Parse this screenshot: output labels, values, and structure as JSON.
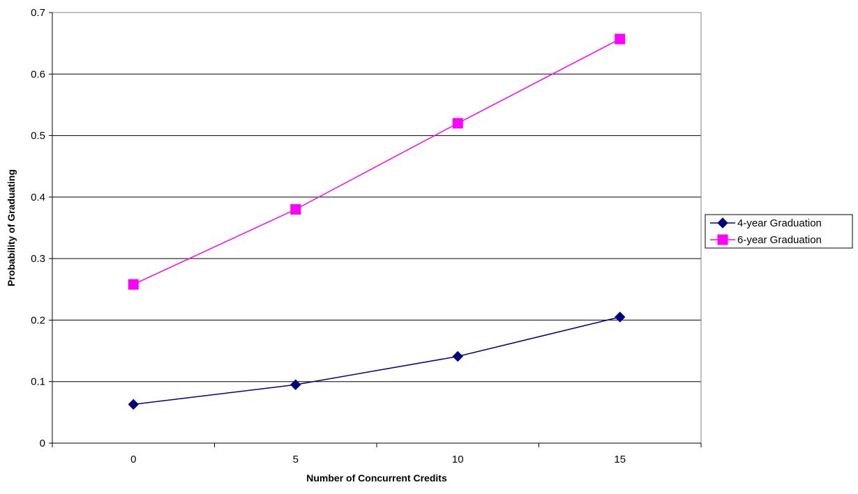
{
  "chart_data": {
    "type": "line",
    "title": "",
    "xlabel": "Number of Concurrent Credits",
    "ylabel": "Probability of Graduating",
    "categories": [
      "0",
      "5",
      "10",
      "15"
    ],
    "ylim": [
      0,
      0.7
    ],
    "yticks": [
      "0",
      "0.1",
      "0.2",
      "0.3",
      "0.4",
      "0.5",
      "0.6",
      "0.7"
    ],
    "grid": true,
    "legend_position": "right",
    "series": [
      {
        "name": "4-year Graduation",
        "values": [
          0.063,
          0.095,
          0.141,
          0.205
        ],
        "color": "#000080",
        "marker": "diamond"
      },
      {
        "name": "6-year Graduation",
        "values": [
          0.258,
          0.38,
          0.52,
          0.657
        ],
        "color": "#FF00FF",
        "marker": "square"
      }
    ]
  }
}
